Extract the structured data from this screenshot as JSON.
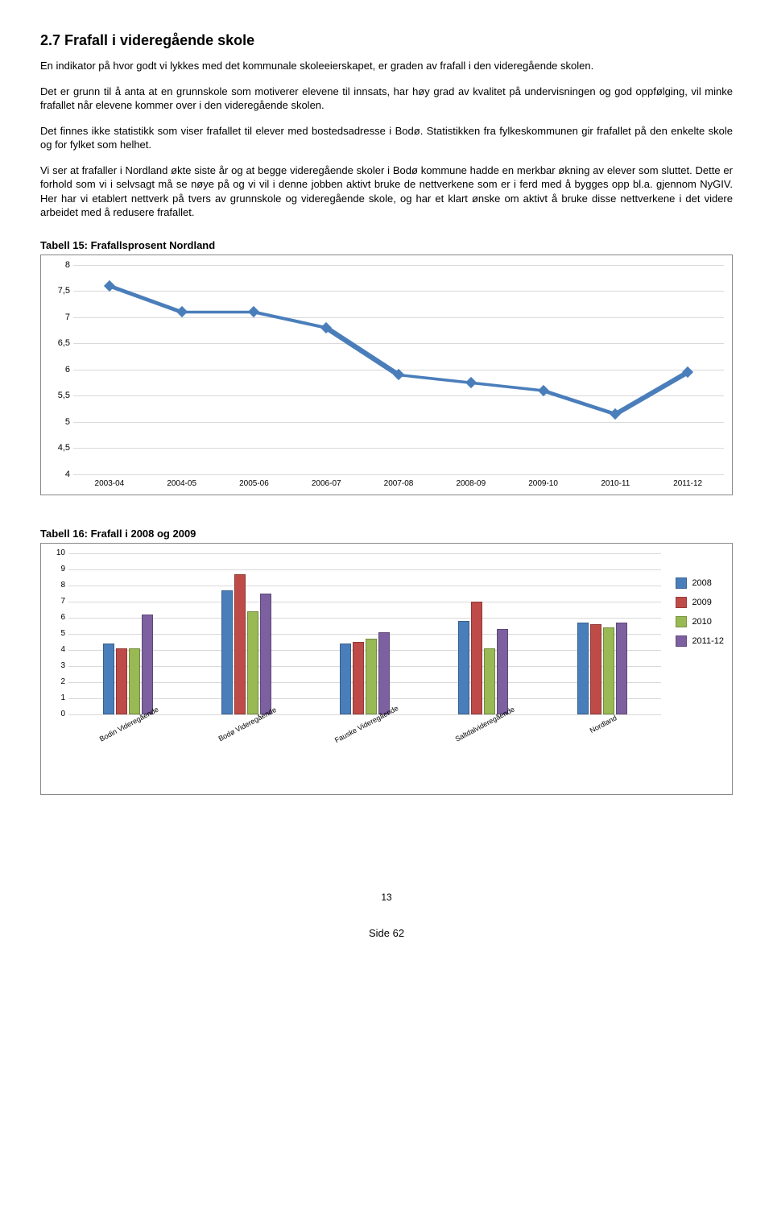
{
  "heading": "2.7  Frafall i videregående skole",
  "para1": "En indikator på hvor godt vi lykkes med det kommunale skoleeierskapet, er graden av frafall i den videregående skolen.",
  "para2": "Det er grunn til å anta at en grunnskole som motiverer elevene til innsats, har høy grad av kvalitet på undervisningen og god oppfølging, vil minke frafallet når elevene kommer over i den videregående skolen.",
  "para3": "Det finnes ikke statistikk som viser frafallet til elever med bostedsadresse i Bodø. Statistikken fra fylkeskommunen gir frafallet på den enkelte skole og for fylket som helhet.",
  "para4": "Vi ser at frafaller i Nordland økte siste år og at begge videregående skoler i Bodø kommune hadde en merkbar økning av elever som sluttet. Dette er forhold som vi i selvsagt må se nøye på og vi vil i denne jobben aktivt bruke de nettverkene som er i ferd med å bygges opp bl.a. gjennom NyGIV. Her har vi etablert nettverk på tvers av grunnskole og videregående skole, og har et klart ønske om aktivt å bruke disse nettverkene i det videre arbeidet med å redusere frafallet.",
  "table15_caption": "Tabell 15: Frafallsprosent Nordland",
  "line_chart": {
    "ymin": 4,
    "ymax": 8,
    "ystep": 0.5,
    "ylabels": [
      "4",
      "4,5",
      "5",
      "5,5",
      "6",
      "6,5",
      "7",
      "7,5",
      "8"
    ],
    "categories": [
      "2003-04",
      "2004-05",
      "2005-06",
      "2006-07",
      "2007-08",
      "2008-09",
      "2009-10",
      "2010-11",
      "2011-12"
    ],
    "values": [
      7.6,
      7.1,
      7.1,
      6.8,
      5.9,
      5.75,
      5.6,
      5.15,
      5.95
    ],
    "line_color": "#4a7ebb",
    "marker_color": "#4a7ebb",
    "grid_color": "#d9d9d9"
  },
  "table16_caption": "Tabell 16: Frafall i 2008 og 2009",
  "bar_chart": {
    "ymin": 0,
    "ymax": 10,
    "ylabels": [
      "0",
      "1",
      "2",
      "3",
      "4",
      "5",
      "6",
      "7",
      "8",
      "9",
      "10"
    ],
    "categories": [
      "Bodin Videregående",
      "Bodø Videregående",
      "Fauske Videregående",
      "Saltdalvideregående",
      "Nordland"
    ],
    "series": [
      {
        "name": "2008",
        "color": "#4a7ebb",
        "values": [
          4.4,
          7.7,
          4.4,
          5.8,
          5.7
        ]
      },
      {
        "name": "2009",
        "color": "#be4b48",
        "values": [
          4.1,
          8.7,
          4.5,
          7.0,
          5.6
        ]
      },
      {
        "name": "2010",
        "color": "#98b954",
        "values": [
          4.1,
          6.4,
          4.7,
          4.1,
          5.4
        ]
      },
      {
        "name": "2011-12",
        "color": "#7d60a0",
        "values": [
          6.2,
          7.5,
          5.1,
          5.3,
          5.7
        ]
      }
    ],
    "grid_color": "#d9d9d9"
  },
  "footer_page": "13",
  "footer_side": "Side 62"
}
